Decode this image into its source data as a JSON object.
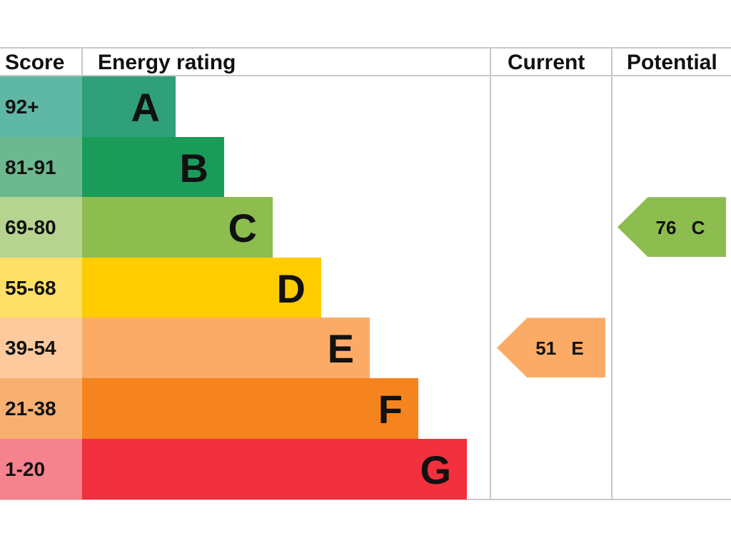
{
  "chart_data": {
    "type": "table",
    "title": "Energy rating",
    "headers": {
      "score": "Score",
      "rating": "Energy rating",
      "current": "Current",
      "potential": "Potential"
    },
    "bands": [
      {
        "score": "92+",
        "letter": "A",
        "color": "#2fa07a",
        "score_color": "#5fb8a5"
      },
      {
        "score": "81-91",
        "letter": "B",
        "color": "#1b9b5a",
        "score_color": "#6cb88f"
      },
      {
        "score": "69-80",
        "letter": "C",
        "color": "#8dbc4f",
        "score_color": "#b6d490"
      },
      {
        "score": "55-68",
        "letter": "D",
        "color": "#ffcc00",
        "score_color": "#ffe066"
      },
      {
        "score": "39-54",
        "letter": "E",
        "color": "#fcab66",
        "score_color": "#fcca9d"
      },
      {
        "score": "21-38",
        "letter": "F",
        "color": "#f5841f",
        "score_color": "#f8b070"
      },
      {
        "score": "1-20",
        "letter": "G",
        "color": "#f3303e",
        "score_color": "#f5838d"
      }
    ],
    "current": {
      "value": 51,
      "letter": "E",
      "label": "51 E",
      "color": "#fcab66"
    },
    "potential": {
      "value": 76,
      "letter": "C",
      "label": "76 C",
      "color": "#8dbc4f"
    }
  }
}
